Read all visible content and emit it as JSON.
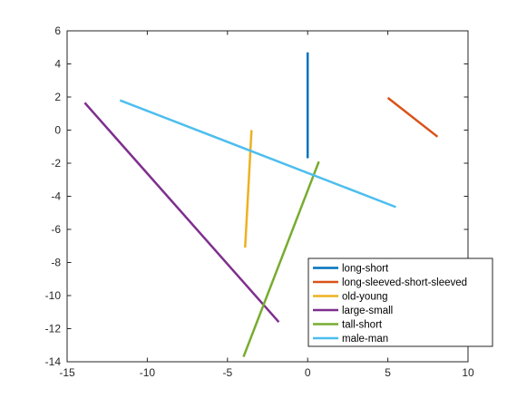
{
  "chart_data": {
    "type": "line",
    "title": "",
    "xlabel": "",
    "ylabel": "",
    "xlim": [
      -15,
      10
    ],
    "ylim": [
      -14,
      6
    ],
    "xticks": [
      -15,
      -10,
      -5,
      0,
      5,
      10
    ],
    "yticks": [
      -14,
      -12,
      -10,
      -8,
      -6,
      -4,
      -2,
      0,
      2,
      4,
      6
    ],
    "grid": false,
    "legend_position": "bottom-right",
    "series": [
      {
        "name": "long-short",
        "color": "#0072BD",
        "points": [
          [
            0.0,
            4.7
          ],
          [
            0.0,
            -1.7
          ]
        ]
      },
      {
        "name": "long-sleeved-short-sleeved",
        "color": "#D95319",
        "points": [
          [
            5.0,
            1.95
          ],
          [
            8.1,
            -0.4
          ]
        ]
      },
      {
        "name": "old-young",
        "color": "#EDB120",
        "points": [
          [
            -3.5,
            0.0
          ],
          [
            -3.9,
            -7.1
          ]
        ]
      },
      {
        "name": "large-small",
        "color": "#7E2F8E",
        "points": [
          [
            -13.9,
            1.65
          ],
          [
            -1.8,
            -11.6
          ]
        ]
      },
      {
        "name": "tall-short",
        "color": "#77AC30",
        "points": [
          [
            -4.0,
            -13.7
          ],
          [
            0.7,
            -1.9
          ]
        ]
      },
      {
        "name": "male-man",
        "color": "#4DBEEE",
        "points": [
          [
            -11.7,
            1.8
          ],
          [
            5.5,
            -4.65
          ]
        ]
      }
    ]
  }
}
